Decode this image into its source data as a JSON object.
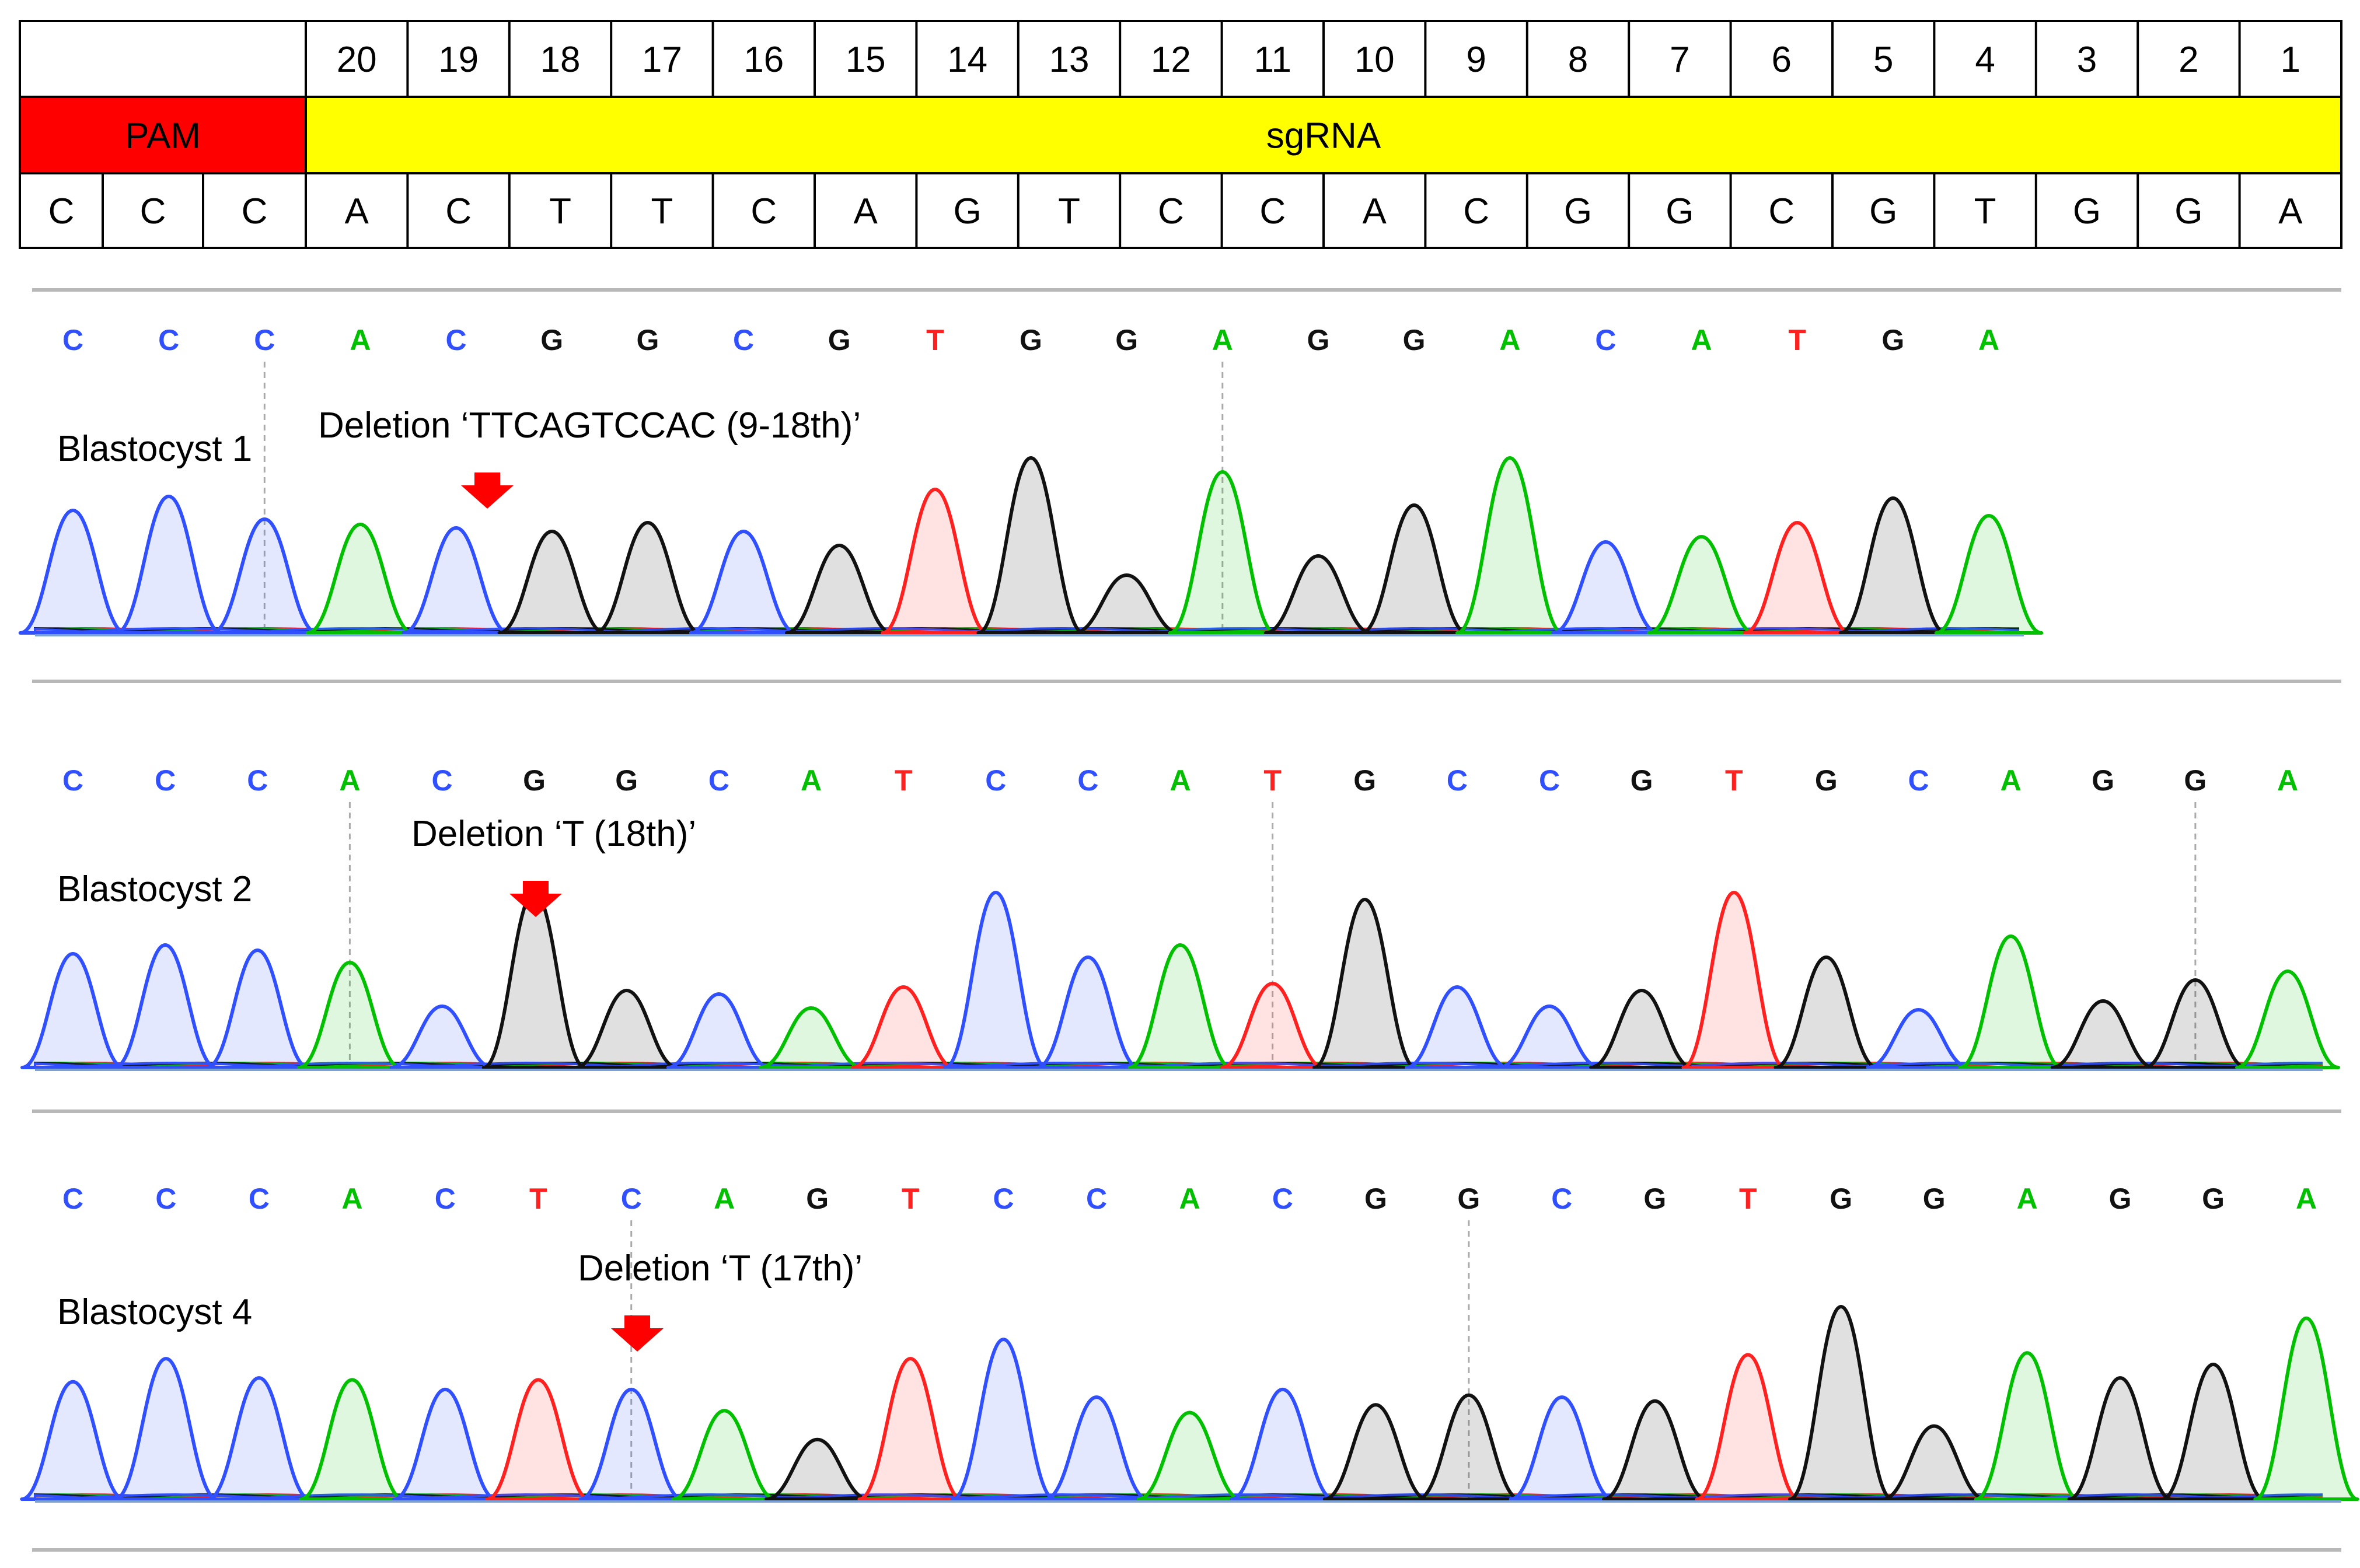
{
  "table": {
    "positions": [
      "20",
      "19",
      "18",
      "17",
      "16",
      "15",
      "14",
      "13",
      "12",
      "11",
      "10",
      "9",
      "8",
      "7",
      "6",
      "5",
      "4",
      "3",
      "2",
      "1"
    ],
    "pam_label": "PAM",
    "sgrna_label": "sgRNA",
    "pam_bases": [
      "C",
      "C",
      "C"
    ],
    "sgrna_bases": [
      "A",
      "C",
      "T",
      "T",
      "C",
      "A",
      "G",
      "T",
      "C",
      "C",
      "A",
      "C",
      "G",
      "G",
      "C",
      "G",
      "T",
      "G",
      "G",
      "A"
    ],
    "pam_color": "#ff0000",
    "sgrna_color": "#ffff00"
  },
  "base_colors": {
    "A": "#00c000",
    "C": "#3050ff",
    "G": "#111111",
    "T": "#ff2020"
  },
  "panels": [
    {
      "label": "Blastocyst 1",
      "deletion": "Deletion ‘TTCAGTCCAC (9-18th)’",
      "sequence": [
        "C",
        "C",
        "C",
        "A",
        "C",
        "G",
        "G",
        "C",
        "G",
        "T",
        "G",
        "G",
        "A",
        "G",
        "G",
        "A",
        "C",
        "A",
        "T",
        "G",
        "A"
      ],
      "peak_heights": [
        0.7,
        0.78,
        0.65,
        0.62,
        0.6,
        0.58,
        0.63,
        0.58,
        0.5,
        0.82,
        1.0,
        0.33,
        0.92,
        0.44,
        0.73,
        1.0,
        0.52,
        0.55,
        0.63,
        0.77,
        0.67
      ],
      "secondary": [
        []
      ]
    },
    {
      "label": "Blastocyst 2",
      "deletion": "Deletion ‘T (18th)’",
      "sequence": [
        "C",
        "C",
        "C",
        "A",
        "C",
        "G",
        "G",
        "C",
        "A",
        "T",
        "C",
        "C",
        "A",
        "T",
        "G",
        "C",
        "C",
        "G",
        "T",
        "G",
        "C",
        "A",
        "G",
        "G",
        "A"
      ],
      "peak_heights": [
        0.65,
        0.7,
        0.67,
        0.6,
        0.35,
        1.0,
        0.44,
        0.42,
        0.34,
        0.46,
        1.0,
        0.63,
        0.7,
        0.48,
        0.96,
        0.46,
        0.35,
        0.44,
        1.0,
        0.63,
        0.33,
        0.75,
        0.38,
        0.5,
        0.55
      ],
      "secondary": []
    },
    {
      "label": "Blastocyst 4",
      "deletion": "Deletion ‘T (17th)’",
      "sequence": [
        "C",
        "C",
        "C",
        "A",
        "C",
        "T",
        "C",
        "A",
        "G",
        "T",
        "C",
        "C",
        "A",
        "C",
        "G",
        "G",
        "C",
        "G",
        "T",
        "G",
        "G",
        "A",
        "G",
        "G",
        "A"
      ],
      "peak_heights": [
        0.61,
        0.73,
        0.63,
        0.62,
        0.57,
        0.62,
        0.57,
        0.46,
        0.31,
        0.73,
        0.83,
        0.53,
        0.45,
        0.57,
        0.49,
        0.54,
        0.53,
        0.51,
        0.75,
        1.0,
        0.38,
        0.76,
        0.63,
        0.7,
        0.94
      ],
      "secondary": []
    }
  ]
}
